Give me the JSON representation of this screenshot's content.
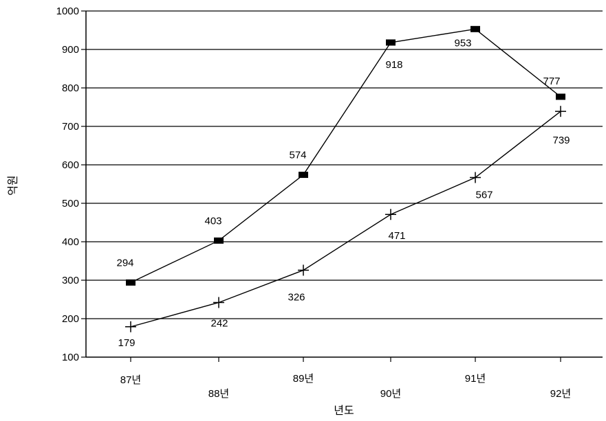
{
  "chart_data": {
    "type": "line",
    "categories": [
      "87년",
      "88년",
      "89년",
      "90년",
      "91년",
      "92년"
    ],
    "series": [
      {
        "values": [
          294,
          403,
          574,
          918,
          953,
          777
        ],
        "marker": "square",
        "color": "#000000"
      },
      {
        "values": [
          179,
          242,
          326,
          471,
          567,
          739
        ],
        "marker": "plus",
        "color": "#000000"
      }
    ],
    "title": "",
    "xlabel": "년도",
    "ylabel": "억원",
    "ylim": [
      100,
      1000
    ],
    "yticks": [
      100,
      200,
      300,
      400,
      500,
      600,
      700,
      800,
      900,
      1000
    ],
    "grid": "horizontal",
    "legend": "none"
  }
}
